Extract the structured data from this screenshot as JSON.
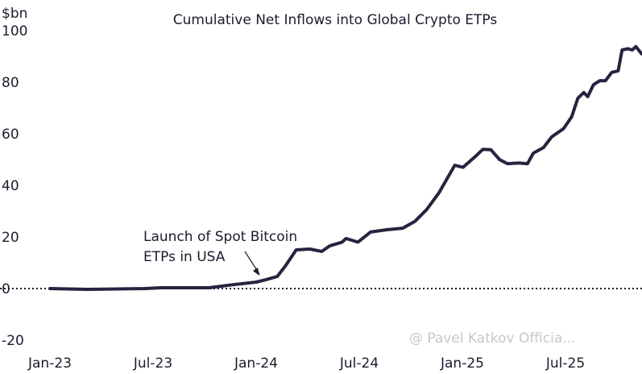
{
  "chart_data": {
    "type": "line",
    "title": "Cumulative Net Inflows into Global Crypto ETPs",
    "ylabel": "$bn",
    "xlabel": "",
    "ylim": [
      -20,
      100
    ],
    "yticks": [
      100,
      80,
      60,
      40,
      20,
      0,
      -20
    ],
    "xticks": [
      {
        "label": "Jan-23",
        "date": "2023-01-01"
      },
      {
        "label": "Jul-23",
        "date": "2023-07-01"
      },
      {
        "label": "Jan-24",
        "date": "2024-01-01"
      },
      {
        "label": "Jul-24",
        "date": "2024-07-01"
      },
      {
        "label": "Jan-25",
        "date": "2025-01-01"
      },
      {
        "label": "Jul-25",
        "date": "2025-07-01"
      }
    ],
    "grid": false,
    "zero_line": "dotted",
    "line_color": "#27233f",
    "annotation": {
      "lines": [
        "Launch of Spot Bitcoin",
        "ETPs in USA"
      ],
      "date": "2024-01-11",
      "value": 3
    },
    "series": [
      {
        "points": [
          [
            "2023-01-01",
            0
          ],
          [
            "2023-03-08",
            -0.3
          ],
          [
            "2023-06-17",
            0
          ],
          [
            "2023-07-15",
            0.3
          ],
          [
            "2023-10-09",
            0.3
          ],
          [
            "2023-11-21",
            1.5
          ],
          [
            "2024-01-01",
            2.5
          ],
          [
            "2024-01-18",
            3.4
          ],
          [
            "2024-02-08",
            4.7
          ],
          [
            "2024-02-22",
            8.7
          ],
          [
            "2024-03-11",
            15
          ],
          [
            "2024-04-05",
            15.3
          ],
          [
            "2024-04-26",
            14.4
          ],
          [
            "2024-05-10",
            16.6
          ],
          [
            "2024-06-01",
            18
          ],
          [
            "2024-06-08",
            19.4
          ],
          [
            "2024-06-29",
            18
          ],
          [
            "2024-07-21",
            21.9
          ],
          [
            "2024-08-19",
            22.8
          ],
          [
            "2024-09-17",
            23.4
          ],
          [
            "2024-10-08",
            26
          ],
          [
            "2024-10-29",
            30.6
          ],
          [
            "2024-11-20",
            37
          ],
          [
            "2024-12-04",
            42.5
          ],
          [
            "2024-12-18",
            47.8
          ],
          [
            "2025-01-02",
            47
          ],
          [
            "2025-01-23",
            51
          ],
          [
            "2025-02-07",
            54
          ],
          [
            "2025-02-21",
            53.8
          ],
          [
            "2025-03-06",
            50
          ],
          [
            "2025-03-20",
            48.4
          ],
          [
            "2025-04-10",
            48.7
          ],
          [
            "2025-04-25",
            48.4
          ],
          [
            "2025-05-05",
            52.5
          ],
          [
            "2025-05-23",
            54.7
          ],
          [
            "2025-06-07",
            58.8
          ],
          [
            "2025-06-28",
            62
          ],
          [
            "2025-07-12",
            66.6
          ],
          [
            "2025-07-23",
            73.8
          ],
          [
            "2025-08-03",
            76
          ],
          [
            "2025-08-10",
            74.4
          ],
          [
            "2025-08-20",
            79
          ],
          [
            "2025-09-01",
            80.6
          ],
          [
            "2025-09-11",
            80.6
          ],
          [
            "2025-09-22",
            83.8
          ],
          [
            "2025-10-03",
            84.4
          ],
          [
            "2025-10-10",
            92.5
          ],
          [
            "2025-10-20",
            93
          ],
          [
            "2025-10-28",
            92.5
          ],
          [
            "2025-11-04",
            93.8
          ],
          [
            "2025-11-14",
            91
          ]
        ]
      }
    ]
  },
  "watermark": "@ Pavel Katkov Officia..."
}
